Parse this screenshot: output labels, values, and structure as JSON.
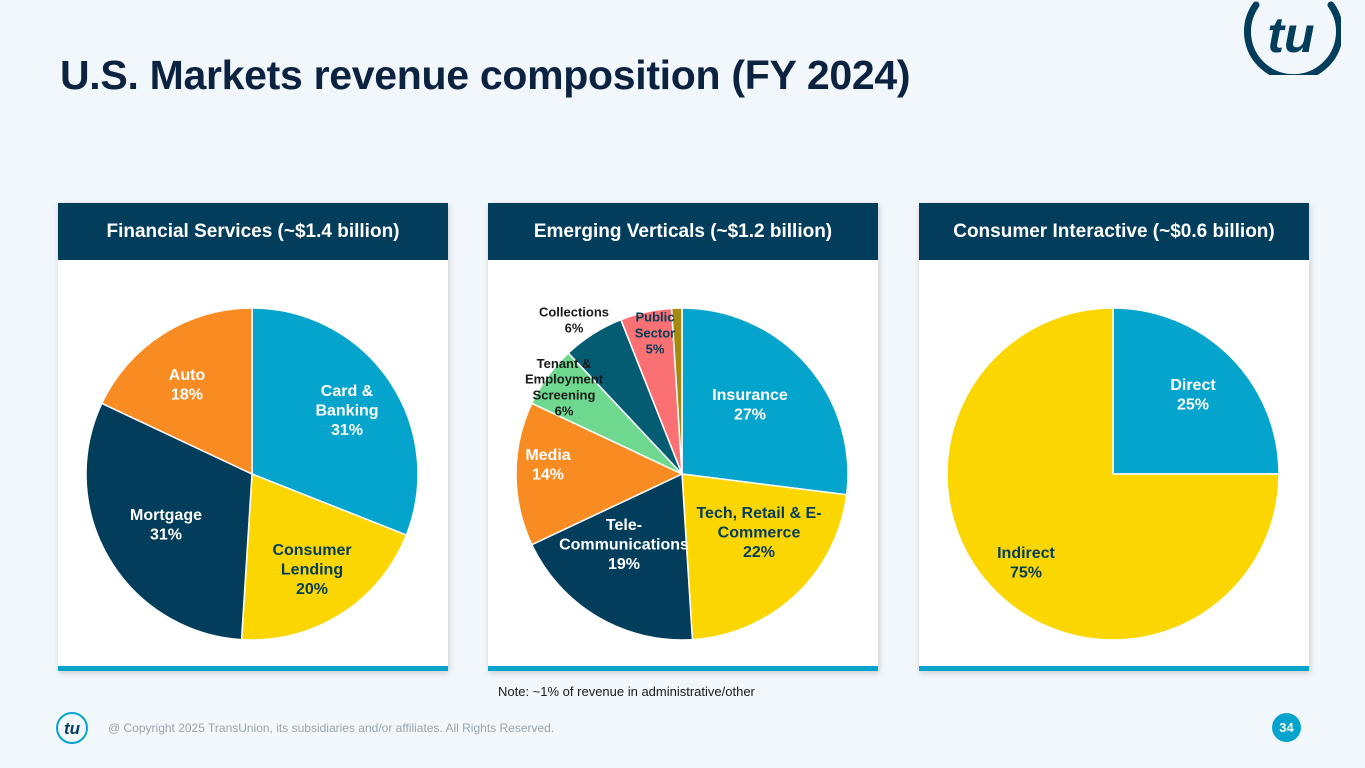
{
  "page": {
    "title": "U.S. Markets revenue composition (FY 2024)",
    "note": "Note: ~1% of revenue in administrative/other",
    "copyright": "@ Copyright 2025 TransUnion, its subsidiaries and/or affiliates.  All Rights Reserved.",
    "page_number": "34",
    "logo_text": "tu"
  },
  "colors": {
    "navy": "#033d5c",
    "cyan": "#05a4cc",
    "yellow": "#fbd600",
    "orange": "#f88b22",
    "green": "#6fd88f",
    "teal": "#045c72",
    "pink": "#fb7173",
    "olive": "#a48a10",
    "white": "#ffffff",
    "dark": "#1a1a1a"
  },
  "chart_data": [
    {
      "type": "pie",
      "title": "Financial Services (~$1.4 billion)",
      "slices": [
        {
          "label": "Card & Banking",
          "value": 31,
          "text": "31%",
          "color": "#05a4cc",
          "text_color": "white"
        },
        {
          "label": "Consumer Lending",
          "value": 20,
          "text": "20%",
          "color": "#fbd600",
          "text_color": "navy"
        },
        {
          "label": "Mortgage",
          "value": 31,
          "text": "31%",
          "color": "#033d5c",
          "text_color": "white"
        },
        {
          "label": "Auto",
          "value": 18,
          "text": "18%",
          "color": "#f88b22",
          "text_color": "white"
        }
      ]
    },
    {
      "type": "pie",
      "title": "Emerging Verticals (~$1.2 billion)",
      "slices": [
        {
          "label": "Insurance",
          "value": 27,
          "text": "27%",
          "color": "#05a4cc",
          "text_color": "white"
        },
        {
          "label": "Tech, Retail & E-Commerce",
          "value": 22,
          "text": "22%",
          "color": "#fbd600",
          "text_color": "navy"
        },
        {
          "label": "Tele-Communications",
          "value": 19,
          "text": "19%",
          "color": "#033d5c",
          "text_color": "white"
        },
        {
          "label": "Media",
          "value": 14,
          "text": "14%",
          "color": "#f88b22",
          "text_color": "white"
        },
        {
          "label": "Tenant & Employment Screening",
          "value": 6,
          "text": "6%",
          "color": "#6fd88f",
          "text_color": "dark"
        },
        {
          "label": "Collections",
          "value": 6,
          "text": "6%",
          "color": "#045c72",
          "text_color": "dark"
        },
        {
          "label": "Public Sector",
          "value": 5,
          "text": "5%",
          "color": "#fb7173",
          "text_color": "navy"
        },
        {
          "label": "Administrative/Other",
          "value": 1,
          "text": "",
          "color": "#a48a10",
          "text_color": "dark"
        }
      ]
    },
    {
      "type": "pie",
      "title": "Consumer Interactive (~$0.6 billion)",
      "slices": [
        {
          "label": "Direct",
          "value": 25,
          "text": "25%",
          "color": "#05a4cc",
          "text_color": "white"
        },
        {
          "label": "Indirect",
          "value": 75,
          "text": "75%",
          "color": "#fbd600",
          "text_color": "navy"
        }
      ]
    }
  ]
}
